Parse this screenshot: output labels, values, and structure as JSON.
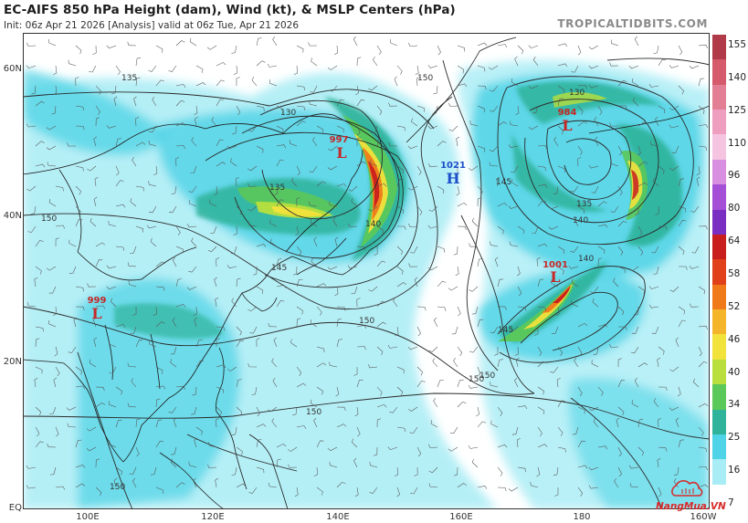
{
  "header": {
    "title": "EC-AIFS 850 hPa Height (dam), Wind (kt), & MSLP Centers (hPa)",
    "subtitle": "Init: 06z Apr 21 2026   [Analysis]   valid at 06z Tue, Apr 21 2026",
    "brand": "TROPICALTIDBITS.COM"
  },
  "axes": {
    "lat_labels": [
      "60N",
      "40N",
      "20N",
      "EQ"
    ],
    "lon_labels": [
      "100E",
      "120E",
      "140E",
      "160E",
      "180",
      "160W"
    ]
  },
  "colorbar": {
    "labels": [
      "155",
      "140",
      "125",
      "110",
      "96",
      "80",
      "64",
      "58",
      "52",
      "46",
      "40",
      "34",
      "25",
      "16",
      "7"
    ],
    "colors": [
      "#b03a48",
      "#d45a6c",
      "#e27f95",
      "#ee9fbf",
      "#f5c4e1",
      "#d88fe0",
      "#a54fd6",
      "#7a2fc2",
      "#c81e1e",
      "#e0401a",
      "#f07a1a",
      "#f5b52a",
      "#f2e23c",
      "#b8df3d",
      "#5bc85a",
      "#2fb39a",
      "#4fd3e6",
      "#a8ecf5",
      "#ffffff"
    ]
  },
  "pressure_centers": [
    {
      "value": "999",
      "letter": "L",
      "kind": "low"
    },
    {
      "value": "997",
      "letter": "L",
      "kind": "low"
    },
    {
      "value": "1021",
      "letter": "H",
      "kind": "high"
    },
    {
      "value": "984",
      "letter": "L",
      "kind": "low"
    },
    {
      "value": "1001",
      "letter": "L",
      "kind": "low"
    }
  ],
  "height_contour_labels": [
    "135",
    "130",
    "135",
    "140",
    "145",
    "150",
    "150",
    "150",
    "150",
    "145",
    "140",
    "135",
    "130",
    "145",
    "140",
    "150",
    "150",
    "150"
  ],
  "watermark": {
    "text": "NangMua.VN"
  }
}
